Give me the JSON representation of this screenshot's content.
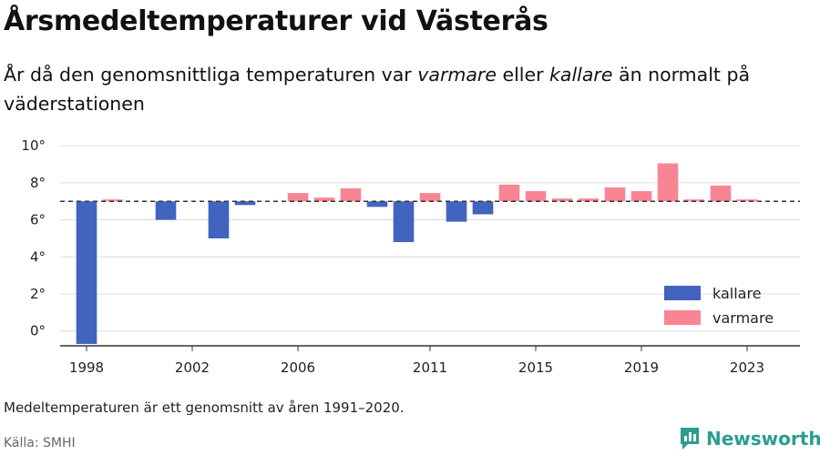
{
  "title": "Årsmedeltemperaturer vid Västerås",
  "subtitle": {
    "part1": "År då den genomsnittliga temperaturen var ",
    "warmer": "varmare",
    "part2": " eller ",
    "colder": "kallare",
    "part3": " än normalt på väderstationen"
  },
  "note": "Medeltemperaturen är ett genomsnitt av åren 1991–2020.",
  "source": "Källa: SMHI",
  "brand": {
    "name": "Newsworthy",
    "icon": "bar-chart-logo-icon",
    "color": "#2a9d8f"
  },
  "chart_data": {
    "type": "bar",
    "baseline": 7.0,
    "ylim": [
      -0.8,
      10.5
    ],
    "xlim": [
      1997,
      2025
    ],
    "yticks": [
      0,
      2,
      4,
      6,
      8,
      10
    ],
    "ytick_labels": [
      "0°",
      "2°",
      "4°",
      "6°",
      "8°",
      "10°"
    ],
    "xticks": [
      1998,
      2002,
      2006,
      2011,
      2015,
      2019,
      2023
    ],
    "xtick_labels": [
      "1998",
      "2002",
      "2006",
      "2011",
      "2015",
      "2019",
      "2023"
    ],
    "grid": true,
    "legend_position": "bottom-right",
    "colors": {
      "kallare": "#4263be",
      "varmare": "#f98594"
    },
    "legend": [
      {
        "key": "kallare",
        "label": "kallare"
      },
      {
        "key": "varmare",
        "label": "varmare"
      }
    ],
    "years": [
      1998,
      1999,
      2000,
      2001,
      2002,
      2003,
      2004,
      2005,
      2006,
      2007,
      2008,
      2009,
      2010,
      2011,
      2012,
      2013,
      2014,
      2015,
      2016,
      2017,
      2018,
      2019,
      2020,
      2021,
      2022,
      2023,
      2024
    ],
    "values": [
      -0.7,
      7.1,
      null,
      6.0,
      null,
      5.0,
      6.8,
      null,
      7.45,
      7.2,
      7.7,
      6.7,
      4.8,
      7.45,
      5.9,
      6.3,
      7.9,
      7.55,
      7.15,
      7.15,
      7.75,
      7.55,
      9.05,
      7.1,
      7.85,
      7.1,
      null
    ]
  }
}
